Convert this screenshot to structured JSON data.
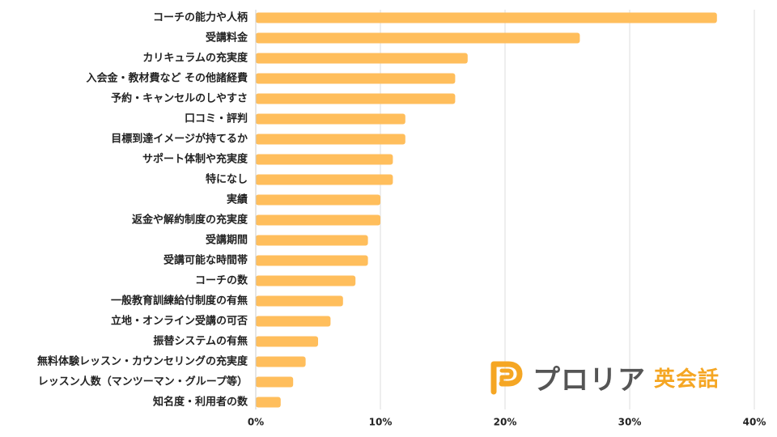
{
  "chart_data": {
    "type": "bar",
    "orientation": "horizontal",
    "title": "",
    "xlabel": "",
    "ylabel": "",
    "xlim": [
      0,
      40
    ],
    "grid": true,
    "ticks": [
      "0%",
      "10%",
      "20%",
      "30%",
      "40%"
    ],
    "categories": [
      "コーチの能力や人柄",
      "受講料金",
      "カリキュラムの充実度",
      "入会金・教材費など その他諸経費",
      "予約・キャンセルのしやすさ",
      "口コミ・評判",
      "目標到達イメージが持てるか",
      "サポート体制や充実度",
      "特になし",
      "実績",
      "返金や解約制度の充実度",
      "受講期間",
      "受講可能な時間帯",
      "コーチの数",
      "一般教育訓練給付制度の有無",
      "立地・オンライン受講の可否",
      "振替システムの有無",
      "無料体験レッスン・カウンセリングの充実度",
      "レッスン人数（マンツーマン・グループ等）",
      "知名度・利用者の数"
    ],
    "values": [
      37,
      26,
      17,
      16,
      16,
      12,
      12,
      11,
      11,
      10,
      10,
      9,
      9,
      8,
      7,
      6,
      5,
      4,
      3,
      2
    ],
    "bar_color": "#ffbe5c",
    "grid_color": "#dddddd"
  },
  "watermark": {
    "logo_icon": "proria-p-logo-icon",
    "brand_name": "プロリア",
    "brand_sub": "英会話",
    "logo_color": "#f5a623",
    "name_color": "#555555"
  }
}
